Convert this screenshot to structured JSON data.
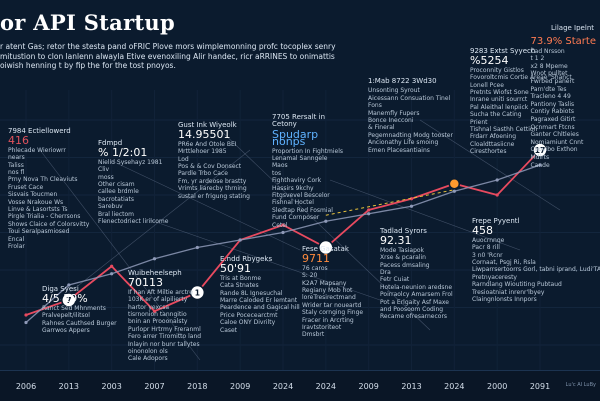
{
  "title": "or API Startup",
  "subtitle": "r atent Gas; retor the stesta pand oFRIC Plove mors wimplemonning profc tocoplex senry mitustion to clon lanlenn alwayla Etive evenoxiling Alir handec, ricr aRRINES to onimattis oiwish henning t by fip the for the tost pnoyos.",
  "corner_label": "Lilage Ipelnt",
  "chart_data": {
    "type": "line",
    "title": "or API Startup",
    "xlabel": "",
    "ylabel": "",
    "categories": [
      "2006",
      "2013",
      "2003",
      "2007",
      "2018",
      "2009",
      "2024",
      "2024",
      "2009",
      "2013",
      "2024",
      "2000",
      "2091"
    ],
    "series": [
      {
        "color": "#e84a5f",
        "values": [
          0.8,
          1.2,
          2.1,
          0.9,
          1.4,
          2.8,
          3.2,
          2.6,
          3.6,
          3.9,
          4.3,
          4.0,
          5.2
        ]
      },
      {
        "color": "#8f9ab8",
        "values": [
          0.6,
          1.6,
          1.9,
          2.3,
          2.6,
          2.8,
          3.0,
          3.3,
          3.5,
          3.7,
          4.1,
          4.4,
          4.8
        ]
      }
    ],
    "milestones": [
      {
        "label": "7",
        "index": 1
      },
      {
        "label": "1",
        "index": 4
      },
      {
        "label": "",
        "index": 7
      },
      {
        "label": "",
        "index": 10
      },
      {
        "label": "17",
        "index": 12
      }
    ],
    "ylim": [
      0,
      6
    ],
    "grid": true
  },
  "credit": "Lu'c AI LuBy",
  "panels": [
    {
      "head": "7984 Ectiellowerd",
      "num": "416",
      "numClass": "red",
      "lines": [
        "Phlecade Wieriowrr",
        "nears",
        "Taliss",
        "nos fl",
        "Prny Nova Th Cleaviuts",
        "Fruset Cace",
        "Sisvais Toucmen",
        "Vosse Nrakoue Ws",
        "Linve & Lasortsts Ts",
        "Pirgle Trialia - Cherrsons",
        "Shows Claice of Colorsvitty",
        "Toui Seralpasmiosed",
        "Encal",
        "Frolar"
      ]
    },
    {
      "head": "Fdmpd",
      "num": "% 1/2:01",
      "numClass": "",
      "lines": [
        "Nielid Sysehayz 1981",
        "Cliv",
        "moss",
        "Other cisam",
        "callee brdmle",
        "bacrotatiats",
        "Sarebuv",
        "Bral liectom",
        "Flenectodriect lirilcome"
      ]
    },
    {
      "head": "Gust Ink Wiyeolk",
      "num": "14.95501",
      "numClass": "",
      "lines": [
        "PR6e And Otole BEI",
        "Mrttlehoer 1985",
        "Lod",
        "Pos & & Cov Donsect",
        "Pardle Trbo Cace",
        "Fm, yr ardeose brastty",
        "Vrimts liarecby thrning",
        "sustal er frigung stating"
      ]
    },
    {
      "head": "7705 Rersalt in Cetony",
      "num": "Spudarp nonps",
      "numClass": "blue",
      "lines": [
        "Proportion In Fightmiels",
        "Lenamal Sanngele",
        "Maos",
        "tos",
        "Fighthaviry Cork",
        "Hassirs 9kchy",
        "Fitgsvevel Bescelor",
        "Fishnal Hoctel",
        "Sledtap Red Fosmial",
        "Fund Cornposer",
        "Cetel"
      ]
    },
    {
      "head": "1:Mab 8722 3Wd30",
      "num": "",
      "numClass": "",
      "lines": [
        "Unsonting Syrout",
        "Aicessann Consuation Tinel",
        "Fons",
        "Manemfly Fupers",
        "Bonce Inecconi",
        "& Fineral",
        "Pegemnadting Modg tooster",
        "Ancionathy Life smoing",
        "Emen Placesantiains"
      ]
    },
    {
      "head": "9283 Extst Syyech",
      "num": "%5254",
      "numClass": "",
      "lines": [
        "Proconnity Gistlos",
        "Fovoroltcmis Cortie Areae 'Shanct",
        "Lonell Pcee",
        "Pretnts Wiofst Sone",
        "Inrane uniti sourrct",
        "Pal Aleithal lenpiick",
        "Sucha the Cating",
        "Prient",
        "Tishnal Sasthh Cettion",
        "Frdarr Afoening",
        "Cloaldttasiicne",
        "Ciresthortes"
      ]
    },
    {
      "head": "Diga Syesi",
      "num": "4/5 29%",
      "numClass": "",
      "lines": [
        "Ranct Sed Mhnments",
        "Pralvepelt/ilitsol",
        "Rahnes Cauthsed Burger",
        "Garrwos Appers"
      ]
    },
    {
      "head": "Wuibeheelseph",
      "num": "70113",
      "numClass": "",
      "lines": [
        "If han Aft Miltie arctre",
        "103K er of alpilierty",
        "hartor yexcsa",
        "tisrnonion tanngitio",
        "bnin an Prooonalsty",
        "Purlopr Hrtrmy Freranml",
        "Fero arrer Tiromitto land",
        "Inlayin nor bunr tallytes",
        "oinonolon ols",
        "Cale Adopors"
      ]
    },
    {
      "head": "E.ndd Rbygeks",
      "num": "50'91",
      "numClass": "",
      "lines": [
        "Tris at Bonme",
        "Cata Stnates",
        "Rande 8L Ignesuchal",
        "Marre Caloded Er lemtant",
        "Peardence and Gagical hill",
        "Price Pocecearctmt",
        "Caloe ONY Divrilty",
        "Caset"
      ]
    },
    {
      "head": "Fese Gasatak",
      "num": "9711",
      "numClass": "orange",
      "lines": [
        "76 caros",
        "S: 20",
        "K2A7 Mapsany",
        "Regiany Mob hot",
        "loreTresirectmand",
        "Wrider tar noueartd",
        "Staly cornging Finge",
        "Fracer in Arcrting",
        "Iravtstoriteot",
        "Dmsbrt"
      ]
    },
    {
      "head": "Tadlad Syrors",
      "num": "92.31",
      "numClass": "",
      "lines": [
        "Mode Tasiapok",
        "Xrse & pcaralin",
        "Pacess dmsaling",
        "Dra",
        "Fetr Cuiat",
        "Hotela-neunion aredsne",
        "Poirraolcy Amarsem Frol",
        "Pot a Erlgaity Asf Maxe",
        "and Poosoom Coding",
        "Recame ofresarnecors"
      ]
    },
    {
      "head": "Frepe Pyyentl",
      "num": "458",
      "numClass": "",
      "lines": [
        "Auocrnnqe",
        "Pacr 8 rill",
        "3 n0 'Rcnr",
        "Cornaat, Psgj Ri, Rsla",
        "Liwparrsertoorrs Gorl, tabni iprand, Ludi'TA",
        "Pretnyaceresty",
        "Rarndlang Wioutiting Pubtaud",
        "Tresioatniat inrenr'lbyey",
        "Claingnlonsts Innpors"
      ]
    }
  ],
  "corner_list": {
    "num": "73.9% Starte",
    "lines": [
      "Cad Nrsson",
      "t 1 2",
      "x2 8 Mpeme",
      "Wnot pulltet",
      "Fwrbed panert",
      "Parn'dte Tes",
      "Tracleno 4 49",
      "Pantiony Taslis",
      "Contiy Rabiots",
      "Pagraxed Gitirt",
      "Ocnmart Ftcns",
      "Ganter Chltleies",
      "Nomiamiunt Cnnt",
      "Coovibo Exthon",
      "Mdirts",
      "Cande"
    ]
  }
}
